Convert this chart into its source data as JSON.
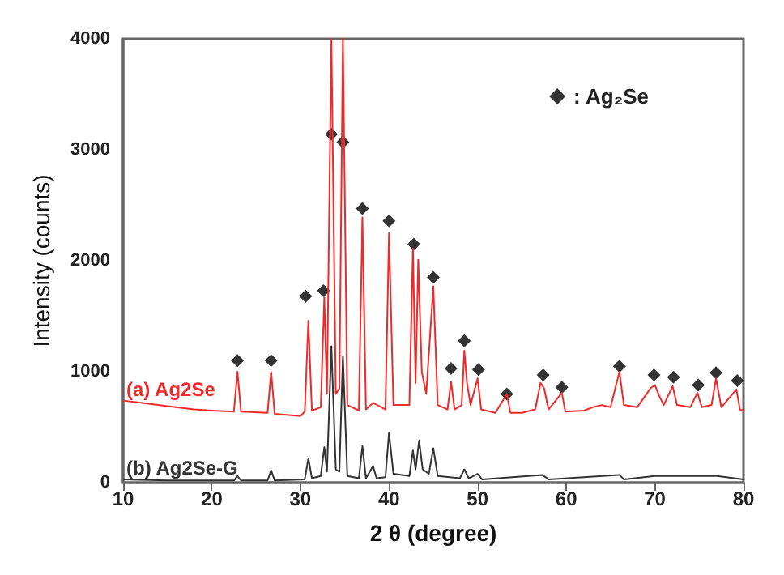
{
  "chart_data": {
    "type": "line",
    "xlabel": "2 θ (degree)",
    "ylabel": "Intensity (counts)",
    "xlim": [
      10,
      80
    ],
    "xticks": [
      10,
      20,
      30,
      40,
      50,
      60,
      70,
      80
    ],
    "ylim": [
      0,
      4000
    ],
    "yticks": [
      0,
      1000,
      2000,
      3000,
      4000
    ],
    "grid": false,
    "legend": "top right",
    "marker": "none",
    "line_style": "solid",
    "series": [
      {
        "name": "(a) Ag2Se",
        "color": "#ee2a2a",
        "x": [
          10,
          12,
          15,
          18,
          20,
          22.5,
          22.9,
          23.3,
          26.3,
          26.7,
          27.1,
          30,
          30.5,
          30.9,
          31.3,
          32.3,
          32.7,
          33.0,
          33.5,
          34.0,
          34.4,
          34.8,
          35.3,
          36.6,
          37.0,
          37.4,
          38.2,
          39.6,
          40.0,
          40.5,
          42.3,
          42.7,
          43.0,
          43.3,
          43.7,
          44.2,
          45.0,
          45.5,
          46.6,
          47.0,
          47.4,
          48.2,
          48.5,
          48.8,
          49.2,
          50.0,
          50.4,
          52,
          53.3,
          53.7,
          55,
          56.5,
          57.1,
          57.5,
          58,
          59.5,
          59.9,
          62,
          63,
          64,
          65,
          66,
          66.5,
          68,
          69.5,
          70,
          70.5,
          71,
          72,
          72.5,
          74,
          74.8,
          75.3,
          76.4,
          76.9,
          77.5,
          79.2,
          79.6,
          80
        ],
        "values": [
          740,
          720,
          690,
          660,
          650,
          640,
          1000,
          640,
          630,
          1000,
          620,
          600,
          640,
          1460,
          650,
          680,
          1670,
          800,
          4000,
          800,
          850,
          4000,
          700,
          650,
          2390,
          660,
          720,
          660,
          2250,
          700,
          700,
          2110,
          900,
          2010,
          1000,
          800,
          1770,
          700,
          660,
          910,
          660,
          700,
          1190,
          900,
          700,
          940,
          660,
          630,
          800,
          630,
          630,
          660,
          900,
          850,
          660,
          810,
          640,
          650,
          680,
          700,
          680,
          1000,
          700,
          680,
          850,
          880,
          780,
          700,
          870,
          700,
          680,
          810,
          680,
          700,
          940,
          680,
          840,
          660,
          650
        ]
      },
      {
        "name": "(b) Ag2Se-G",
        "color": "#333333",
        "x": [
          10,
          15,
          20,
          22.5,
          22.9,
          23.3,
          26.3,
          26.7,
          27.1,
          30.5,
          30.9,
          31.3,
          32.3,
          32.7,
          33.0,
          33.5,
          34.0,
          34.4,
          34.8,
          35.3,
          36.6,
          37.0,
          37.4,
          38.2,
          38.6,
          39.6,
          40.0,
          40.5,
          42.3,
          42.7,
          43.0,
          43.4,
          43.8,
          44.5,
          45.0,
          45.5,
          48.0,
          48.5,
          49,
          50,
          50.5,
          57.3,
          58,
          66,
          66.5,
          70,
          72,
          77,
          80
        ],
        "values": [
          30,
          20,
          20,
          20,
          60,
          20,
          20,
          110,
          20,
          30,
          220,
          40,
          60,
          320,
          100,
          1230,
          120,
          100,
          1140,
          60,
          40,
          330,
          40,
          150,
          40,
          50,
          450,
          80,
          60,
          290,
          120,
          380,
          120,
          80,
          310,
          60,
          40,
          120,
          40,
          80,
          30,
          70,
          30,
          70,
          30,
          60,
          60,
          60,
          30
        ]
      },
      {
        "name": ": Ag₂Se",
        "type": "scatter",
        "marker": "diamond",
        "color": "#000000",
        "x": [
          22.9,
          26.7,
          30.6,
          32.6,
          33.5,
          34.8,
          37.0,
          40.0,
          42.8,
          45.0,
          47.0,
          48.5,
          50.1,
          53.3,
          57.4,
          59.5,
          66,
          69.9,
          72.1,
          74.9,
          76.9,
          79.3
        ],
        "values": [
          1100,
          1100,
          1680,
          1730,
          3140,
          3070,
          2470,
          2360,
          2150,
          1850,
          1030,
          1280,
          1020,
          800,
          970,
          860,
          1050,
          970,
          950,
          880,
          990,
          920
        ]
      }
    ]
  }
}
